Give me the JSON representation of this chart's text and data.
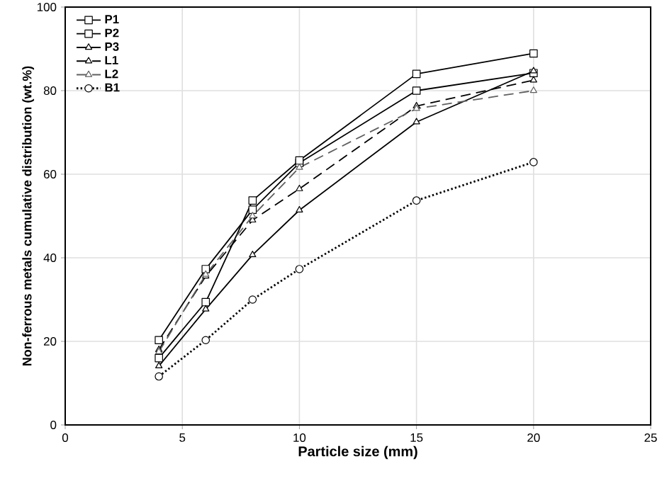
{
  "chart_data": {
    "type": "line",
    "xlabel": "Particle size (mm)",
    "ylabel": "Non-ferrous metals cumulative distribution (wt.%)",
    "xlim": [
      0,
      25
    ],
    "ylim": [
      0,
      100
    ],
    "xticks": [
      0,
      5,
      10,
      15,
      20,
      25
    ],
    "yticks": [
      0,
      20,
      40,
      60,
      80,
      100
    ],
    "grid": true,
    "legend": "top left",
    "x": [
      4,
      6,
      8,
      10,
      15,
      20
    ],
    "series": [
      {
        "name": "P1",
        "color": "#000000",
        "marker": "square",
        "line_style": "solid",
        "values": [
          20.3,
          37.3,
          51.5,
          62.7,
          80,
          84.2
        ]
      },
      {
        "name": "P2",
        "color": "#000000",
        "marker": "square",
        "line_style": "solid",
        "values": [
          16,
          29.4,
          53.7,
          63.3,
          84,
          88.9
        ]
      },
      {
        "name": "P3",
        "color": "#000000",
        "marker": "triangle",
        "line_style": "solid",
        "values": [
          14.1,
          27.7,
          40.7,
          51.4,
          72.5,
          84.7
        ]
      },
      {
        "name": "L1",
        "color": "#000000",
        "marker": "triangle",
        "line_style": "dashed",
        "values": [
          18,
          35.6,
          49,
          56.5,
          76.3,
          82.5
        ]
      },
      {
        "name": "L2",
        "color": "#606060",
        "marker": "triangle",
        "line_style": "dashed",
        "values": [
          17.5,
          36,
          50,
          61.6,
          75.7,
          80
        ]
      },
      {
        "name": "B1",
        "color": "#000000",
        "marker": "circle",
        "line_style": "dotted",
        "values": [
          11.6,
          20.3,
          30,
          37.3,
          53.7,
          62.9
        ]
      }
    ]
  }
}
